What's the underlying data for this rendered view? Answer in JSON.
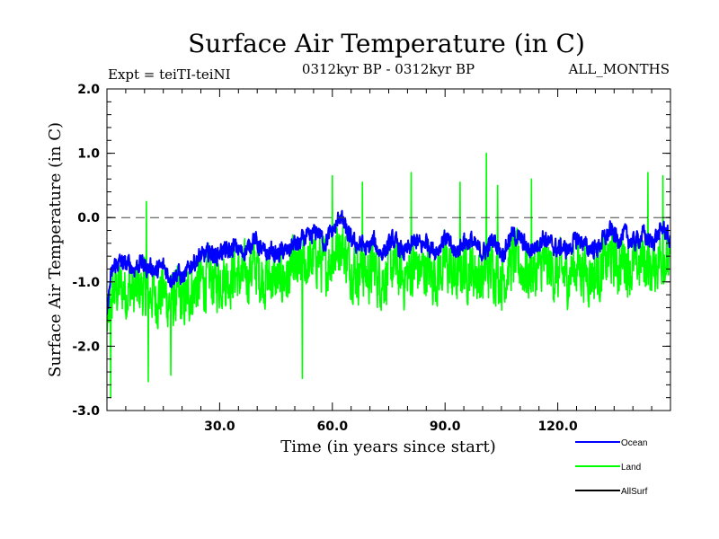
{
  "chart_data": {
    "type": "line",
    "title": "Surface Air Temperature (in C)",
    "subtitle_left": "Expt = teiTI-teiNI",
    "subtitle_center": "0312kyr BP - 0312kyr BP",
    "subtitle_right": "ALL_MONTHS",
    "xlabel": "Time (in years since start)",
    "ylabel": "Surface Air Temperature (in C)",
    "xlim": [
      0,
      150
    ],
    "ylim": [
      -3.0,
      2.0
    ],
    "x_ticks": [
      30,
      60,
      90,
      120
    ],
    "x_tick_labels": [
      "30.0",
      "60.0",
      "90.0",
      "120.0"
    ],
    "y_ticks": [
      -3,
      -2,
      -1,
      0,
      1,
      2
    ],
    "y_tick_labels": [
      "-3.0",
      "-2.0",
      "-1.0",
      "0.0",
      "1.0",
      "2.0"
    ],
    "reference_line": {
      "y": 0.0,
      "style": "dashed"
    },
    "samples_per_year": 12,
    "series": [
      {
        "name": "Ocean",
        "color": "#0000ff",
        "values": [
          -1.45,
          -0.95,
          -0.75,
          -0.7,
          -0.7,
          -0.75,
          -0.7,
          -0.8,
          -0.75,
          -0.7,
          -0.75,
          -0.8,
          -0.75,
          -0.85,
          -0.8,
          -0.75,
          -0.85,
          -0.95,
          -0.9,
          -0.85,
          -0.95,
          -0.9,
          -0.75,
          -0.7,
          -0.65,
          -0.6,
          -0.6,
          -0.55,
          -0.55,
          -0.6,
          -0.55,
          -0.5,
          -0.55,
          -0.5,
          -0.45,
          -0.5,
          -0.55,
          -0.5,
          -0.45,
          -0.3,
          -0.4,
          -0.5,
          -0.55,
          -0.55,
          -0.5,
          -0.6,
          -0.55,
          -0.5,
          -0.55,
          -0.45,
          -0.4,
          -0.45,
          -0.35,
          -0.3,
          -0.35,
          -0.25,
          -0.2,
          -0.3,
          -0.4,
          -0.3,
          -0.2,
          -0.15,
          0.05,
          -0.1,
          -0.25,
          -0.35,
          -0.4,
          -0.45,
          -0.4,
          -0.5,
          -0.45,
          -0.35,
          -0.5,
          -0.55,
          -0.5,
          -0.45,
          -0.35,
          -0.4,
          -0.5,
          -0.55,
          -0.5,
          -0.45,
          -0.35,
          -0.4,
          -0.45,
          -0.35,
          -0.45,
          -0.5,
          -0.5,
          -0.4,
          -0.3,
          -0.4,
          -0.5,
          -0.55,
          -0.45,
          -0.35,
          -0.4,
          -0.35,
          -0.45,
          -0.5,
          -0.55,
          -0.5,
          -0.4,
          -0.35,
          -0.45,
          -0.55,
          -0.5,
          -0.35,
          -0.25,
          -0.3,
          -0.35,
          -0.4,
          -0.5,
          -0.5,
          -0.45,
          -0.4,
          -0.3,
          -0.35,
          -0.4,
          -0.45,
          -0.5,
          -0.45,
          -0.5,
          -0.5,
          -0.4,
          -0.35,
          -0.35,
          -0.4,
          -0.5,
          -0.45,
          -0.5,
          -0.45,
          -0.35,
          -0.3,
          -0.2,
          -0.25,
          -0.35,
          -0.3,
          -0.25,
          -0.35,
          -0.4,
          -0.35,
          -0.3,
          -0.25,
          -0.35,
          -0.4,
          -0.3,
          -0.25,
          -0.15,
          -0.25,
          -0.4
        ],
        "noise": 0.12
      },
      {
        "name": "Land",
        "color": "#00ff00",
        "values": [
          -1.7,
          -1.3,
          -1.15,
          -1.1,
          -1.1,
          -1.15,
          -1.1,
          -1.2,
          -1.15,
          -1.1,
          -1.15,
          -1.2,
          -1.15,
          -1.25,
          -1.2,
          -1.15,
          -1.25,
          -1.35,
          -1.3,
          -1.25,
          -1.35,
          -1.3,
          -1.15,
          -1.1,
          -1.05,
          -1.0,
          -1.0,
          -0.95,
          -0.95,
          -1.0,
          -0.95,
          -0.9,
          -0.95,
          -0.9,
          -0.85,
          -0.9,
          -0.95,
          -0.9,
          -0.85,
          -0.7,
          -0.8,
          -0.9,
          -0.95,
          -0.95,
          -0.9,
          -1.0,
          -0.95,
          -0.9,
          -0.95,
          -0.85,
          -0.8,
          -0.85,
          -0.75,
          -0.7,
          -0.75,
          -0.65,
          -0.6,
          -0.7,
          -0.8,
          -0.7,
          -0.6,
          -0.55,
          -0.35,
          -0.5,
          -0.65,
          -0.75,
          -0.8,
          -0.85,
          -0.8,
          -0.9,
          -0.85,
          -0.75,
          -0.9,
          -0.95,
          -0.9,
          -0.85,
          -0.75,
          -0.8,
          -0.9,
          -0.95,
          -0.9,
          -0.85,
          -0.75,
          -0.8,
          -0.85,
          -0.75,
          -0.85,
          -0.9,
          -0.9,
          -0.8,
          -0.7,
          -0.8,
          -0.9,
          -0.95,
          -0.85,
          -0.75,
          -0.8,
          -0.75,
          -0.85,
          -0.9,
          -0.95,
          -0.9,
          -0.8,
          -0.75,
          -0.85,
          -0.95,
          -0.9,
          -0.75,
          -0.65,
          -0.7,
          -0.75,
          -0.8,
          -0.9,
          -0.9,
          -0.85,
          -0.8,
          -0.7,
          -0.75,
          -0.8,
          -0.85,
          -0.9,
          -0.85,
          -0.9,
          -0.9,
          -0.8,
          -0.75,
          -0.75,
          -0.8,
          -0.9,
          -0.85,
          -0.9,
          -0.85,
          -0.75,
          -0.7,
          -0.6,
          -0.65,
          -0.75,
          -0.7,
          -0.65,
          -0.75,
          -0.8,
          -0.75,
          -0.7,
          -0.65,
          -0.75,
          -0.8,
          -0.7,
          -0.65,
          -0.55,
          -0.65,
          -0.8
        ],
        "noise": 0.38,
        "highlights": [
          {
            "x": 1,
            "y": -2.8
          },
          {
            "x": 10.5,
            "y": 0.25
          },
          {
            "x": 11,
            "y": -2.55
          },
          {
            "x": 17,
            "y": -2.45
          },
          {
            "x": 52,
            "y": -2.5
          },
          {
            "x": 60,
            "y": 0.65
          },
          {
            "x": 68,
            "y": 0.55
          },
          {
            "x": 81,
            "y": 0.7
          },
          {
            "x": 94,
            "y": 0.55
          },
          {
            "x": 101,
            "y": 1.0
          },
          {
            "x": 104,
            "y": 0.5
          },
          {
            "x": 113,
            "y": 0.6
          },
          {
            "x": 144,
            "y": 0.7
          },
          {
            "x": 148,
            "y": 0.65
          }
        ]
      },
      {
        "name": "AllSurf",
        "color": "#000000",
        "values": []
      }
    ]
  }
}
